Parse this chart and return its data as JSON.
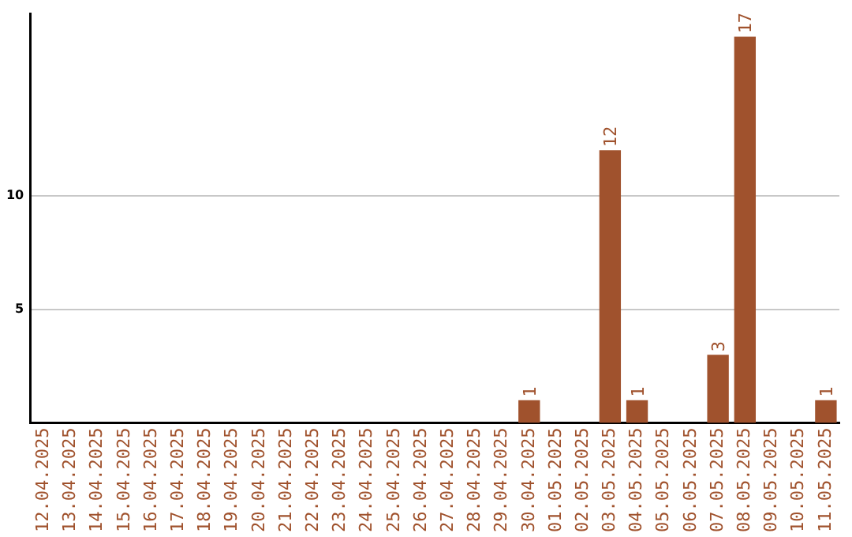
{
  "chart_data": {
    "type": "bar",
    "categories": [
      "12.04.2025",
      "13.04.2025",
      "14.04.2025",
      "15.04.2025",
      "16.04.2025",
      "17.04.2025",
      "18.04.2025",
      "19.04.2025",
      "20.04.2025",
      "21.04.2025",
      "22.04.2025",
      "23.04.2025",
      "24.04.2025",
      "25.04.2025",
      "26.04.2025",
      "27.04.2025",
      "28.04.2025",
      "29.04.2025",
      "30.04.2025",
      "01.05.2025",
      "02.05.2025",
      "03.05.2025",
      "04.05.2025",
      "05.05.2025",
      "06.05.2025",
      "07.05.2025",
      "08.05.2025",
      "09.05.2025",
      "10.05.2025",
      "11.05.2025"
    ],
    "values": [
      0,
      0,
      0,
      0,
      0,
      0,
      0,
      0,
      0,
      0,
      0,
      0,
      0,
      0,
      0,
      0,
      0,
      0,
      1,
      0,
      0,
      12,
      1,
      0,
      0,
      3,
      17,
      0,
      0,
      1
    ],
    "value_labels": [
      null,
      null,
      null,
      null,
      null,
      null,
      null,
      null,
      null,
      null,
      null,
      null,
      null,
      null,
      null,
      null,
      null,
      null,
      "1",
      null,
      null,
      "12",
      "1",
      null,
      null,
      "3",
      "17",
      null,
      null,
      "1"
    ],
    "color": "#a0522d",
    "ylim": [
      0,
      18
    ],
    "yticks": [
      5,
      10
    ],
    "grid": "y",
    "legend": false
  }
}
